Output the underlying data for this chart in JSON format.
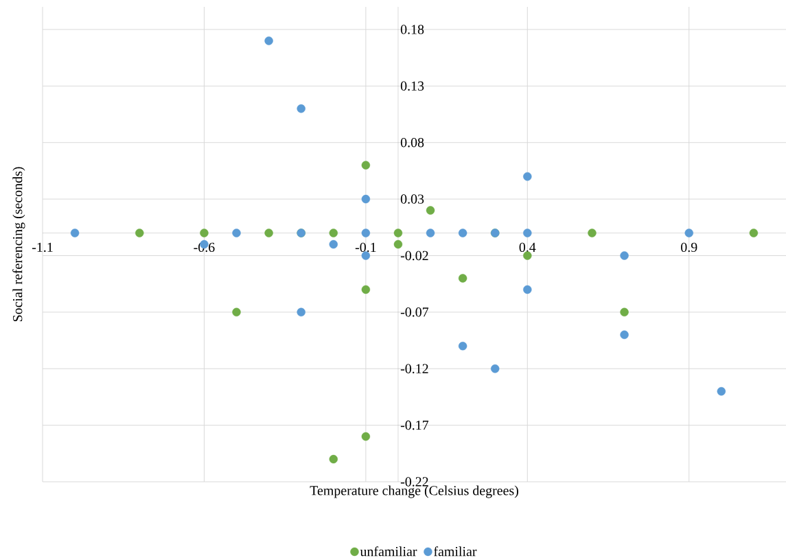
{
  "chart_data": {
    "type": "scatter",
    "xlabel": "Temperature change (Celsius degrees)",
    "ylabel": "Social referencing (seconds)",
    "xlim": [
      -1.1,
      1.2
    ],
    "xticks": [
      -1.1,
      -0.6,
      -0.1,
      0.4,
      0.9
    ],
    "ylim": [
      -0.22,
      0.2
    ],
    "yticks": [
      -0.22,
      -0.17,
      -0.12,
      -0.07,
      -0.02,
      0.03,
      0.08,
      0.13,
      0.18
    ],
    "grid": true,
    "legend": "bottom",
    "marker": "circle",
    "series": [
      {
        "name": "unfamiliar",
        "color": "#70ad47",
        "x": [
          -0.8,
          -0.6,
          -0.5,
          -0.4,
          -0.3,
          -0.2,
          -0.2,
          -0.1,
          -0.1,
          -0.1,
          0,
          0,
          0.1,
          0.2,
          0.3,
          0.4,
          0.6,
          0.7,
          1.1
        ],
        "values": [
          0,
          0,
          -0.07,
          0,
          0,
          0,
          -0.2,
          0.06,
          -0.05,
          -0.18,
          0,
          -0.01,
          0.02,
          -0.04,
          0,
          -0.02,
          0,
          -0.07,
          0
        ]
      },
      {
        "name": "familiar",
        "color": "#5b9bd5",
        "x": [
          -1.0,
          -0.6,
          -0.5,
          -0.4,
          -0.3,
          -0.3,
          -0.3,
          -0.2,
          -0.1,
          -0.1,
          -0.1,
          0.1,
          0.2,
          0.2,
          0.3,
          0.3,
          0.4,
          0.4,
          0.4,
          0.7,
          0.7,
          0.9,
          1.0
        ],
        "values": [
          0,
          -0.01,
          0,
          0.17,
          0.11,
          0,
          -0.07,
          -0.01,
          0.03,
          0,
          -0.02,
          0,
          0,
          -0.1,
          0,
          -0.12,
          0.05,
          0,
          -0.05,
          -0.02,
          -0.09,
          0,
          -0.14
        ]
      }
    ]
  }
}
